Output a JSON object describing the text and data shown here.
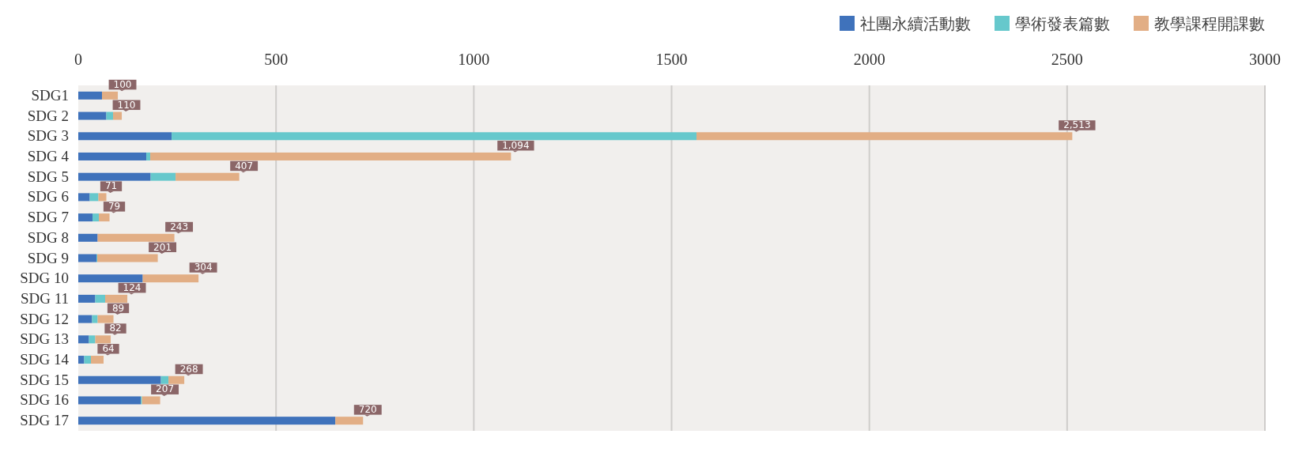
{
  "chart_data": {
    "type": "bar",
    "orientation": "horizontal",
    "stacked": true,
    "categories": [
      "SDG1",
      "SDG 2",
      "SDG 3",
      "SDG 4",
      "SDG 5",
      "SDG 6",
      "SDG 7",
      "SDG 8",
      "SDG 9",
      "SDG 10",
      "SDG 11",
      "SDG 12",
      "SDG 13",
      "SDG 14",
      "SDG 15",
      "SDG 16",
      "SDG 17"
    ],
    "series": [
      {
        "name": "社團永續活動數",
        "color": "#3f72bb",
        "values": [
          60,
          71,
          236,
          172,
          183,
          29,
          36,
          49,
          46,
          163,
          43,
          35,
          27,
          15,
          209,
          158,
          650
        ]
      },
      {
        "name": "學術發表篇數",
        "color": "#66c8cc",
        "values": [
          0,
          17,
          1327,
          10,
          63,
          22,
          16,
          0,
          2,
          0,
          25,
          14,
          16,
          17,
          19,
          3,
          0
        ]
      },
      {
        "name": "教學課程開課數",
        "color": "#e2ae85",
        "values": [
          40,
          22,
          950,
          912,
          161,
          20,
          27,
          194,
          153,
          141,
          56,
          40,
          39,
          32,
          40,
          46,
          70
        ]
      }
    ],
    "totals": [
      "100",
      "110",
      "2,513",
      "1,094",
      "407",
      "71",
      "79",
      "243",
      "201",
      "304",
      "124",
      "89",
      "82",
      "64",
      "268",
      "207",
      "720"
    ],
    "xlim": [
      0,
      3000
    ],
    "xticks": [
      0,
      500,
      1000,
      1500,
      2000,
      2500,
      3000
    ],
    "grid": "x",
    "legend": "top right"
  }
}
